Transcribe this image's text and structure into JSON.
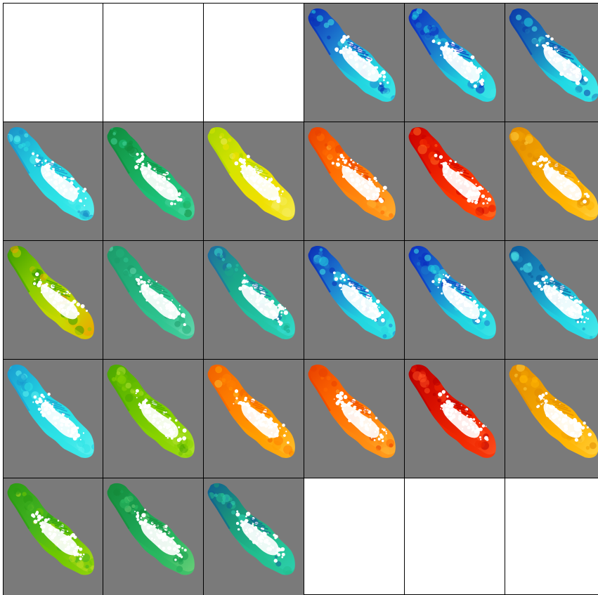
{
  "grid": {
    "columns": 6,
    "rows": 5,
    "background": "#7a7a7a"
  },
  "panels": [
    {
      "kind": "empty"
    },
    {
      "kind": "empty"
    },
    {
      "kind": "empty"
    },
    {
      "kind": "map",
      "palette": [
        "#0a2bb5",
        "#1e7fd0",
        "#22d6e0",
        "#3fe8e8"
      ]
    },
    {
      "kind": "map",
      "palette": [
        "#0b2bc0",
        "#1a78cc",
        "#1fd4e0",
        "#3ee6e6"
      ]
    },
    {
      "kind": "map",
      "palette": [
        "#0b3aa8",
        "#1874b8",
        "#20d8e4",
        "#4aeaea"
      ]
    },
    {
      "kind": "map",
      "palette": [
        "#1a90c8",
        "#22cfe0",
        "#2ee4e6",
        "#5ef0f0"
      ]
    },
    {
      "kind": "map",
      "palette": [
        "#0e8a3c",
        "#17a958",
        "#1cc27a",
        "#45d49a"
      ]
    },
    {
      "kind": "map",
      "palette": [
        "#a8d400",
        "#d6e400",
        "#efe000",
        "#f5ec5a"
      ]
    },
    {
      "kind": "map",
      "palette": [
        "#e84000",
        "#ff6a00",
        "#ff8a10",
        "#ffb030"
      ]
    },
    {
      "kind": "map",
      "palette": [
        "#c80000",
        "#e81a00",
        "#ff3a00",
        "#ff6a20"
      ]
    },
    {
      "kind": "map",
      "palette": [
        "#e08a00",
        "#f0a000",
        "#ffb400",
        "#ffd040"
      ]
    },
    {
      "kind": "map",
      "palette": [
        "#3a9a00",
        "#8acc00",
        "#c8d800",
        "#f0a000"
      ]
    },
    {
      "kind": "map",
      "palette": [
        "#1c9a6a",
        "#22b07a",
        "#2ec490",
        "#6ad8b0"
      ]
    },
    {
      "kind": "map",
      "palette": [
        "#1e6aa0",
        "#1aa98a",
        "#22c4a4",
        "#35dcd0"
      ]
    },
    {
      "kind": "map",
      "palette": [
        "#0a2bb5",
        "#1e7fd0",
        "#22d6e0",
        "#3fe8e8"
      ]
    },
    {
      "kind": "map",
      "palette": [
        "#0b2bc0",
        "#1a78cc",
        "#1fd4e0",
        "#3ee6e6"
      ]
    },
    {
      "kind": "map",
      "palette": [
        "#0b5a9a",
        "#1a8cc0",
        "#22d6e4",
        "#4aeaea"
      ]
    },
    {
      "kind": "map",
      "palette": [
        "#1a9ad0",
        "#22cfe0",
        "#2ee4e6",
        "#5ef0f0"
      ]
    },
    {
      "kind": "map",
      "palette": [
        "#4aa600",
        "#6ac000",
        "#8ad400",
        "#b0e030"
      ]
    },
    {
      "kind": "map",
      "palette": [
        "#f06000",
        "#ff8000",
        "#ffa000",
        "#ffc030"
      ]
    },
    {
      "kind": "map",
      "palette": [
        "#e84000",
        "#ff6a00",
        "#ff8a10",
        "#ffb030"
      ]
    },
    {
      "kind": "map",
      "palette": [
        "#b80000",
        "#d81000",
        "#f02800",
        "#ff5020"
      ]
    },
    {
      "kind": "map",
      "palette": [
        "#e08a00",
        "#f0a000",
        "#ffb400",
        "#ffd040"
      ]
    },
    {
      "kind": "map",
      "palette": [
        "#2a9a10",
        "#40b020",
        "#70c800",
        "#b8dc20"
      ]
    },
    {
      "kind": "map",
      "palette": [
        "#158a3a",
        "#1aa050",
        "#2ab860",
        "#6cd07a"
      ]
    },
    {
      "kind": "map",
      "palette": [
        "#105e90",
        "#1a9a7a",
        "#22c090",
        "#2ed0b0"
      ]
    },
    {
      "kind": "empty"
    },
    {
      "kind": "empty"
    },
    {
      "kind": "empty"
    }
  ]
}
